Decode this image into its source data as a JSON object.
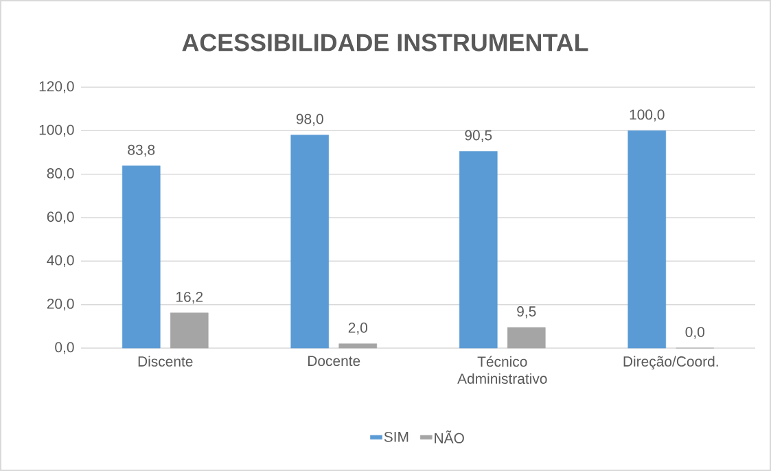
{
  "chart_data": {
    "type": "bar",
    "title": "ACESSIBILIDADE INSTRUMENTAL",
    "categories": [
      "Discente",
      "Docente",
      "Técnico Administrativo",
      "Direção/Coord."
    ],
    "series": [
      {
        "name": "SIM",
        "color": "#5b9bd5",
        "values": [
          83.8,
          98.0,
          90.5,
          100.0
        ],
        "value_labels": [
          "83,8",
          "98,0",
          "90,5",
          "100,0"
        ]
      },
      {
        "name": "NÃO",
        "color": "#a5a5a5",
        "values": [
          16.2,
          2.0,
          9.5,
          0.0
        ],
        "value_labels": [
          "16,2",
          "2,0",
          "9,5",
          "0,0"
        ]
      }
    ],
    "ylim": [
      0,
      120
    ],
    "yticks": [
      {
        "value": 0,
        "label": "0,0"
      },
      {
        "value": 20,
        "label": "20,0"
      },
      {
        "value": 40,
        "label": "40,0"
      },
      {
        "value": 60,
        "label": "60,0"
      },
      {
        "value": 80,
        "label": "80,0"
      },
      {
        "value": 100,
        "label": "100,0"
      },
      {
        "value": 120,
        "label": "120,0"
      }
    ],
    "grid": "y",
    "legend": "bottom"
  }
}
